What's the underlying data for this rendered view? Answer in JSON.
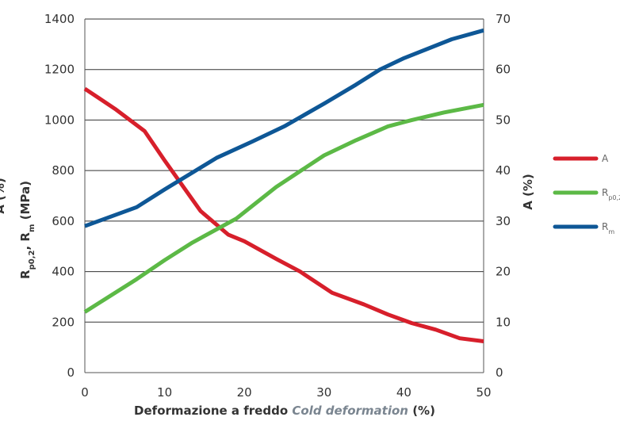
{
  "chart_data": {
    "type": "line",
    "xlabel": {
      "prefix": "Deformazione a freddo ",
      "italic": "Cold deformation",
      "suffix": " (%)"
    },
    "ylabel_left": {
      "parts": [
        {
          "text": "R",
          "sub": "p0,2"
        },
        {
          "text": ", R",
          "sub": "m"
        },
        {
          "text": " (MPa)",
          "sub": ""
        }
      ]
    },
    "ylabel_left_partial": "A (%)",
    "ylabel_right": "A (%)",
    "xlim": [
      0,
      50
    ],
    "ylim_left": [
      0,
      1400
    ],
    "ylim_right": [
      0,
      70
    ],
    "x_ticks": [
      "0",
      "10",
      "20",
      "30",
      "40",
      "50"
    ],
    "y_left_ticks": [
      "0",
      "200",
      "400",
      "600",
      "800",
      "1000",
      "1200",
      "1400"
    ],
    "y_right_ticks": [
      "0",
      "10",
      "20",
      "30",
      "40",
      "50",
      "60",
      "70"
    ],
    "grid": "horizontal",
    "legend_position": "right",
    "series": [
      {
        "key": "A",
        "legend": {
          "text": "A",
          "sub": ""
        },
        "axis": "right",
        "color": "#d71f2b",
        "points": [
          [
            0,
            56.2
          ],
          [
            3.8,
            52.2
          ],
          [
            7.5,
            47.8
          ],
          [
            10,
            42
          ],
          [
            14.5,
            32
          ],
          [
            18,
            27.3
          ],
          [
            20,
            26
          ],
          [
            24,
            22.5
          ],
          [
            27,
            20
          ],
          [
            31,
            15.8
          ],
          [
            35,
            13.5
          ],
          [
            38,
            11.5
          ],
          [
            41,
            9.8
          ],
          [
            44,
            8.5
          ],
          [
            47,
            6.8
          ],
          [
            50,
            6.2
          ]
        ]
      },
      {
        "key": "Rp02",
        "legend": {
          "text": "R",
          "sub": "p0,2"
        },
        "axis": "left",
        "color": "#5cb946",
        "points": [
          [
            0,
            240
          ],
          [
            6.5,
            370
          ],
          [
            10,
            445
          ],
          [
            13.5,
            515
          ],
          [
            19,
            610
          ],
          [
            24,
            735
          ],
          [
            30,
            860
          ],
          [
            34,
            920
          ],
          [
            38,
            975
          ],
          [
            41,
            1000
          ],
          [
            45,
            1030
          ],
          [
            50,
            1060
          ]
        ]
      },
      {
        "key": "Rm",
        "legend": {
          "text": "R",
          "sub": "m"
        },
        "axis": "left",
        "color": "#0e5796",
        "points": [
          [
            0,
            580
          ],
          [
            6.5,
            655
          ],
          [
            10,
            725
          ],
          [
            16.5,
            850
          ],
          [
            21,
            915
          ],
          [
            25,
            975
          ],
          [
            30,
            1065
          ],
          [
            34,
            1140
          ],
          [
            37,
            1200
          ],
          [
            40,
            1245
          ],
          [
            46,
            1320
          ],
          [
            50,
            1355
          ]
        ]
      }
    ]
  }
}
